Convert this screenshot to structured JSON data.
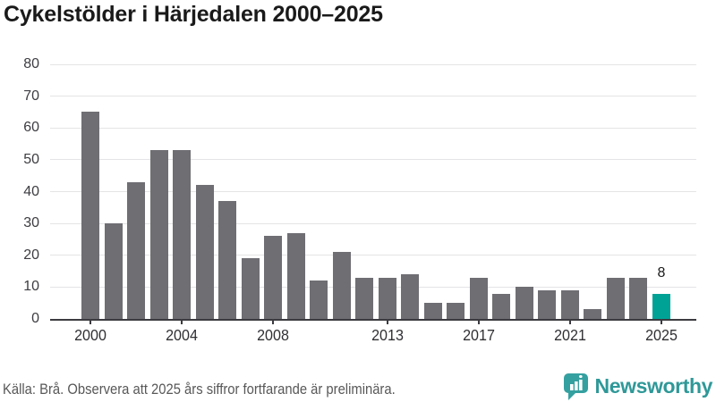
{
  "title": "Cykelstölder i Härjedalen 2000–2025",
  "footer": {
    "source_note": "Källa: Brå. Observera att 2025 års siffror fortfarande är preliminära.",
    "brand_name": "Newsworthy",
    "brand_icon": "speech-bubble-bar-chart-icon"
  },
  "colors": {
    "bar": "#6e6e73",
    "highlight_bar": "#00a296",
    "axis": "#3b3b40",
    "gridline": "#e4e4e6",
    "title_text": "#1a1a1a",
    "tick_label": "#3d3d42",
    "source_text": "#585858",
    "brand_teal": "#2f9898"
  },
  "chart_data": {
    "type": "bar",
    "title": "Cykelstölder i Härjedalen 2000–2025",
    "categories": [
      2000,
      2001,
      2002,
      2003,
      2004,
      2005,
      2006,
      2007,
      2008,
      2009,
      2010,
      2011,
      2012,
      2013,
      2014,
      2015,
      2016,
      2017,
      2018,
      2019,
      2020,
      2021,
      2022,
      2023,
      2024,
      2025
    ],
    "values": [
      65,
      30,
      43,
      53,
      53,
      42,
      37,
      19,
      26,
      27,
      12,
      21,
      13,
      13,
      14,
      5,
      5,
      13,
      8,
      10,
      9,
      9,
      3,
      13,
      13,
      8
    ],
    "highlight_index": 25,
    "highlight_annotation": "8",
    "x_tick_labels": [
      "2000",
      "2004",
      "2008",
      "2013",
      "2017",
      "2021",
      "2025"
    ],
    "y_ticks": [
      0,
      10,
      20,
      30,
      40,
      50,
      60,
      70,
      80
    ],
    "ylim": [
      0,
      80
    ],
    "xlabel": "",
    "ylabel": "",
    "grid": "horizontal",
    "legend": "none"
  }
}
